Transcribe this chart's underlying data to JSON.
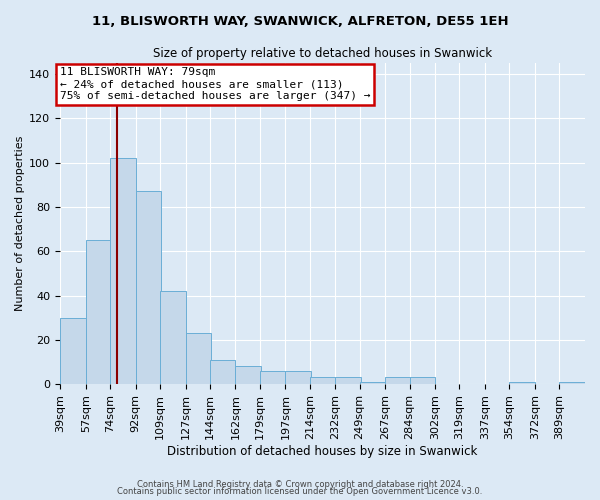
{
  "title": "11, BLISWORTH WAY, SWANWICK, ALFRETON, DE55 1EH",
  "subtitle": "Size of property relative to detached houses in Swanwick",
  "xlabel": "Distribution of detached houses by size in Swanwick",
  "ylabel": "Number of detached properties",
  "bar_color": "#c5d8ea",
  "bar_edge_color": "#6aaed6",
  "bins": [
    39,
    57,
    74,
    92,
    109,
    127,
    144,
    162,
    179,
    197,
    214,
    232,
    249,
    267,
    284,
    302,
    319,
    337,
    354,
    372,
    389
  ],
  "values": [
    30,
    65,
    102,
    87,
    42,
    23,
    11,
    8,
    6,
    6,
    3,
    3,
    1,
    3,
    3,
    0,
    0,
    0,
    1,
    0,
    1
  ],
  "property_sqm": 79,
  "annotation_title": "11 BLISWORTH WAY: 79sqm",
  "annotation_line1": "← 24% of detached houses are smaller (113)",
  "annotation_line2": "75% of semi-detached houses are larger (347) →",
  "red_line_color": "#8b0000",
  "annotation_box_color": "#ffffff",
  "annotation_box_edge_color": "#cc0000",
  "ylim": [
    0,
    145
  ],
  "background_color": "#dce9f5",
  "grid_color": "#ffffff",
  "footer_line1": "Contains HM Land Registry data © Crown copyright and database right 2024.",
  "footer_line2": "Contains public sector information licensed under the Open Government Licence v3.0."
}
